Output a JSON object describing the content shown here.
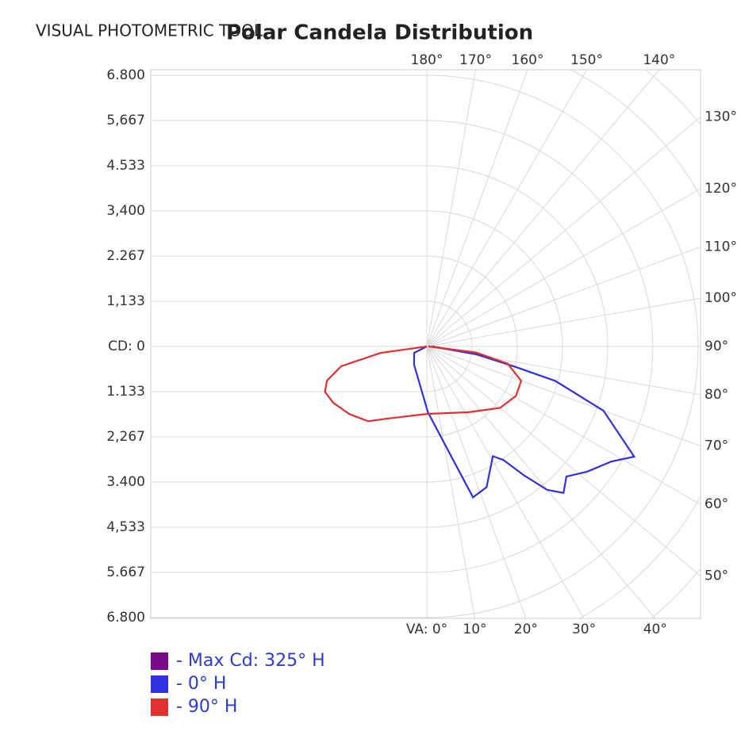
{
  "header": "VISUAL PHOTOMETRIC TOOL",
  "chart_data": {
    "type": "polar",
    "title": "Polar Candela Distribution",
    "rlim": [
      0,
      6800
    ],
    "rticks_up": [
      {
        "value": 6800,
        "label": "6.800"
      },
      {
        "value": 5667,
        "label": "5,667"
      },
      {
        "value": 4533,
        "label": "4.533"
      },
      {
        "value": 3400,
        "label": "3,400"
      },
      {
        "value": 2267,
        "label": "2.267"
      },
      {
        "value": 1133,
        "label": "1,133"
      },
      {
        "value": 0,
        "label": "CD: 0"
      }
    ],
    "rticks_down": [
      {
        "value": 1133,
        "label": "1.133"
      },
      {
        "value": 2267,
        "label": "2,267"
      },
      {
        "value": 3400,
        "label": "3.400"
      },
      {
        "value": 4533,
        "label": "4,533"
      },
      {
        "value": 5667,
        "label": "5.667"
      },
      {
        "value": 6800,
        "label": "6.800"
      }
    ],
    "angle_ticks": [
      {
        "value": 180,
        "label": "180°"
      },
      {
        "value": 170,
        "label": "170°"
      },
      {
        "value": 160,
        "label": "160°"
      },
      {
        "value": 150,
        "label": "150°"
      },
      {
        "value": 140,
        "label": "140°"
      },
      {
        "value": 130,
        "label": "130°"
      },
      {
        "value": 120,
        "label": "120°"
      },
      {
        "value": 110,
        "label": "110°"
      },
      {
        "value": 100,
        "label": "100°"
      },
      {
        "value": 90,
        "label": "90°"
      },
      {
        "value": 80,
        "label": "80°"
      },
      {
        "value": 70,
        "label": "70°"
      },
      {
        "value": 60,
        "label": "60°"
      },
      {
        "value": 50,
        "label": "50°"
      },
      {
        "value": 40,
        "label": "40°"
      },
      {
        "value": 30,
        "label": "30°"
      },
      {
        "value": 20,
        "label": "20°"
      },
      {
        "value": 10,
        "label": "10°"
      },
      {
        "value": 0,
        "label": "VA: 0°"
      }
    ],
    "grid": true,
    "series": [
      {
        "name": "- Max Cd: 325° H",
        "color": "#7a0a8c",
        "angles": [],
        "values": []
      },
      {
        "name": "- 0° H",
        "color": "#3030e0",
        "angles": [
          180,
          -63,
          -35,
          1,
          13,
          17,
          23,
          31,
          34,
          37,
          40,
          43,
          47,
          52,
          58,
          62,
          70,
          75,
          77,
          81,
          90
        ],
        "values": [
          0,
          356,
          557,
          1650,
          2913,
          3956,
          3833,
          3212,
          3435,
          4048,
          4699,
          5022,
          4783,
          5099,
          5449,
          5887,
          4712,
          3332,
          2282,
          1248,
          139
        ]
      },
      {
        "name": "- 90° H",
        "color": "#e03030",
        "angles": [
          -90,
          -82,
          -77,
          -71,
          -66,
          -59,
          -49,
          -38,
          -28,
          1,
          32,
          50,
          61,
          70,
          78,
          83,
          90
        ],
        "values": [
          0,
          1164,
          2204,
          2647,
          2794,
          2738,
          2579,
          2382,
          2045,
          1690,
          1947,
          2398,
          2555,
          2516,
          2070,
          1243,
          40
        ]
      }
    ]
  }
}
